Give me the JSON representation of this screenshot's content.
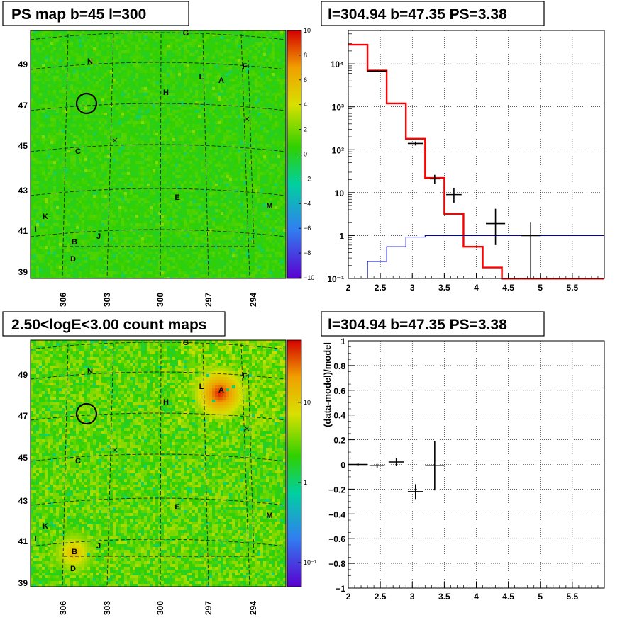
{
  "chart_data": [
    {
      "type": "heatmap",
      "title": "PS map b=45 l=300",
      "x_ticks": [
        "306",
        "303",
        "300",
        "297",
        "294"
      ],
      "y_ticks": [
        "49",
        "47",
        "45",
        "43",
        "41",
        "39"
      ],
      "colorbar": {
        "scale": "linear",
        "range": [
          -10,
          10
        ],
        "ticks": [
          "10",
          "8",
          "6",
          "4",
          "2",
          "0",
          "−2",
          "−4",
          "−6",
          "−8",
          "−10"
        ],
        "colors": [
          "#d40000",
          "#f0a000",
          "#d8e000",
          "#30d000",
          "#00d0a0",
          "#3080f0",
          "#5a00d0"
        ]
      },
      "background_value": 0,
      "marker_labels": [
        "G",
        "N",
        "F",
        "L",
        "A",
        "H",
        "C",
        "E",
        "M",
        "K",
        "I",
        "J",
        "B",
        "D"
      ],
      "grid_lines": "dashed"
    },
    {
      "type": "line",
      "title": "l=304.94 b=47.35 PS=3.38",
      "x_scale": "linear",
      "y_scale": "log",
      "xlim": [
        2,
        6
      ],
      "ylim": [
        0.1,
        60000
      ],
      "x_ticks": [
        "2",
        "2.5",
        "3",
        "3.5",
        "4",
        "4.5",
        "5",
        "5.5"
      ],
      "y_ticks": [
        "10⁻¹",
        "1",
        "10",
        "10²",
        "10³",
        "10⁴"
      ],
      "grid": true,
      "bin_edges": [
        2.0,
        2.3,
        2.6,
        2.9,
        3.2,
        3.5,
        3.8,
        4.1,
        4.4,
        4.7,
        5.0,
        5.3,
        5.6,
        5.9,
        6.0
      ],
      "series": [
        {
          "style": "step",
          "color": "#ff0000",
          "values": [
            28000,
            7000,
            1200,
            180,
            22,
            3.2,
            0.55,
            0.18,
            0.08,
            0.08,
            0.08,
            0.08,
            0.08,
            0.08
          ]
        },
        {
          "style": "step",
          "color": "#0000aa",
          "values": [
            0.1,
            0.25,
            0.55,
            0.92,
            1.0,
            1.0,
            1.0,
            1.0,
            1.0,
            1.0,
            1.0,
            1.0,
            1.0,
            1.0
          ]
        },
        {
          "style": "errorbar",
          "color": "#000000",
          "points": [
            {
              "x": 2.45,
              "y": 6800,
              "ylo": 6500,
              "yhi": 7100,
              "xerr": 0.15
            },
            {
              "x": 3.05,
              "y": 140,
              "ylo": 125,
              "yhi": 155,
              "xerr": 0.12
            },
            {
              "x": 3.35,
              "y": 21,
              "ylo": 16,
              "yhi": 26,
              "xerr": 0.08
            },
            {
              "x": 3.65,
              "y": 9,
              "ylo": 5.8,
              "yhi": 13,
              "xerr": 0.12
            },
            {
              "x": 4.3,
              "y": 1.9,
              "ylo": 0.6,
              "yhi": 4.2,
              "xerr": 0.15
            },
            {
              "x": 4.85,
              "y": 1.0,
              "ylo": 0.1,
              "yhi": 2.0,
              "xerr": 0.15
            }
          ]
        }
      ]
    },
    {
      "type": "heatmap",
      "title": "2.50<logE<3.00 count maps",
      "x_ticks": [
        "306",
        "303",
        "300",
        "297",
        "294"
      ],
      "y_ticks": [
        "49",
        "47",
        "45",
        "43",
        "41",
        "39"
      ],
      "colorbar": {
        "scale": "log",
        "range": [
          0.05,
          60
        ],
        "ticks": [
          "10",
          "1",
          "10⁻¹"
        ],
        "colors": [
          "#d40000",
          "#f0a000",
          "#d8e000",
          "#30d000",
          "#00d0a0",
          "#3080f0",
          "#5a00d0"
        ]
      },
      "sources": [
        {
          "label": "A",
          "strength": "high"
        },
        {
          "label": "B",
          "strength": "medium"
        }
      ],
      "marker_labels": [
        "G",
        "N",
        "F",
        "L",
        "A",
        "H",
        "C",
        "E",
        "M",
        "K",
        "I",
        "J",
        "B",
        "D"
      ],
      "grid_lines": "dashed"
    },
    {
      "type": "scatter",
      "title": "l=304.94 b=47.35 PS=3.38",
      "xlim": [
        2,
        6
      ],
      "ylim": [
        -1,
        1
      ],
      "ylabel": "(data-model)/model",
      "x_ticks": [
        "2",
        "2.5",
        "3",
        "3.5",
        "4",
        "4.5",
        "5",
        "5.5"
      ],
      "y_ticks": [
        "1",
        "0.8",
        "0.6",
        "0.4",
        "0.2",
        "0",
        "−0.2",
        "−0.4",
        "−0.6",
        "−0.8",
        "−1"
      ],
      "grid": true,
      "points": [
        {
          "x": 2.15,
          "y": 0.0,
          "yerr": 0.01,
          "xerr": 0.15
        },
        {
          "x": 2.45,
          "y": -0.01,
          "yerr": 0.015,
          "xerr": 0.12
        },
        {
          "x": 2.75,
          "y": 0.02,
          "yerr": 0.03,
          "xerr": 0.12
        },
        {
          "x": 3.05,
          "y": -0.22,
          "yerr": 0.06,
          "xerr": 0.12
        },
        {
          "x": 3.35,
          "y": -0.01,
          "yerr": 0.2,
          "xerr": 0.15
        }
      ]
    }
  ]
}
